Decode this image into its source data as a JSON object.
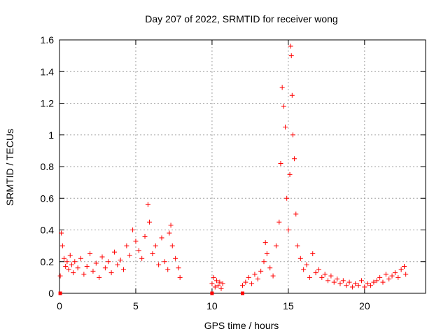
{
  "chart_data": {
    "type": "scatter",
    "title": "Day 207 of 2022, SRMTID for receiver wong",
    "xlabel": "GPS time / hours",
    "ylabel": "SRMTID / TECUs",
    "xlim": [
      0,
      24
    ],
    "ylim": [
      0,
      1.6
    ],
    "x_ticks": [
      0,
      5,
      10,
      15,
      20
    ],
    "x_tick_labels": [
      "0",
      "5",
      "10",
      "15",
      "20"
    ],
    "y_ticks": [
      0,
      0.2,
      0.4,
      0.6,
      0.8,
      1.0,
      1.2,
      1.4,
      1.6
    ],
    "y_tick_labels": [
      "0",
      "0.2",
      "0.4",
      "0.6",
      "0.8",
      "1",
      "1.2",
      "1.4",
      "1.6"
    ],
    "grid": true,
    "marker": "+",
    "marker_color": "#ff0000",
    "series": [
      {
        "name": "SRMTID",
        "x": [
          0.05,
          0.12,
          0.2,
          0.3,
          0.4,
          0.5,
          0.6,
          0.7,
          0.8,
          0.9,
          1.0,
          1.2,
          1.4,
          1.6,
          1.8,
          2.0,
          2.2,
          2.4,
          2.6,
          2.8,
          3.0,
          3.2,
          3.4,
          3.6,
          3.8,
          4.0,
          4.2,
          4.4,
          4.6,
          4.8,
          5.0,
          5.2,
          5.4,
          5.6,
          5.8,
          5.9,
          6.1,
          6.3,
          6.5,
          6.7,
          6.9,
          7.1,
          7.2,
          7.3,
          7.4,
          7.6,
          7.8,
          7.9,
          10.0,
          10.1,
          10.2,
          10.3,
          10.4,
          10.5,
          10.6,
          10.7,
          12.0,
          12.2,
          12.4,
          12.6,
          12.8,
          13.0,
          13.2,
          13.4,
          13.5,
          13.6,
          13.8,
          14.0,
          14.2,
          14.4,
          14.5,
          14.6,
          14.7,
          14.8,
          14.9,
          15.0,
          15.1,
          15.15,
          15.2,
          15.25,
          15.3,
          15.4,
          15.5,
          15.6,
          15.8,
          16.0,
          16.2,
          16.4,
          16.6,
          16.8,
          17.0,
          17.2,
          17.4,
          17.6,
          17.8,
          18.0,
          18.2,
          18.4,
          18.6,
          18.8,
          19.0,
          19.2,
          19.4,
          19.6,
          19.8,
          20.0,
          20.2,
          20.4,
          20.6,
          20.8,
          21.0,
          21.2,
          21.4,
          21.6,
          21.8,
          22.0,
          22.2,
          22.4,
          22.6,
          22.7
        ],
        "y": [
          0.11,
          0.38,
          0.3,
          0.22,
          0.17,
          0.2,
          0.15,
          0.24,
          0.18,
          0.13,
          0.2,
          0.16,
          0.22,
          0.12,
          0.17,
          0.25,
          0.14,
          0.19,
          0.1,
          0.23,
          0.16,
          0.2,
          0.13,
          0.26,
          0.18,
          0.21,
          0.15,
          0.3,
          0.24,
          0.4,
          0.33,
          0.27,
          0.22,
          0.36,
          0.56,
          0.45,
          0.25,
          0.3,
          0.18,
          0.35,
          0.2,
          0.15,
          0.38,
          0.43,
          0.3,
          0.22,
          0.16,
          0.1,
          0.06,
          0.1,
          0.04,
          0.08,
          0.05,
          0.07,
          0.03,
          0.06,
          0.05,
          0.07,
          0.1,
          0.06,
          0.12,
          0.09,
          0.14,
          0.2,
          0.32,
          0.25,
          0.16,
          0.11,
          0.3,
          0.45,
          0.82,
          1.3,
          1.18,
          1.05,
          0.6,
          0.4,
          0.75,
          1.56,
          1.5,
          1.25,
          1.0,
          0.85,
          0.5,
          0.3,
          0.22,
          0.15,
          0.18,
          0.1,
          0.25,
          0.13,
          0.15,
          0.1,
          0.12,
          0.08,
          0.11,
          0.07,
          0.09,
          0.06,
          0.08,
          0.05,
          0.07,
          0.04,
          0.06,
          0.05,
          0.08,
          0.04,
          0.06,
          0.05,
          0.07,
          0.08,
          0.1,
          0.07,
          0.12,
          0.09,
          0.11,
          0.13,
          0.1,
          0.15,
          0.17,
          0.12
        ]
      }
    ],
    "zero_markers": {
      "x": [
        0.05,
        10.0,
        12.0
      ],
      "y": [
        0,
        0,
        0
      ]
    }
  }
}
